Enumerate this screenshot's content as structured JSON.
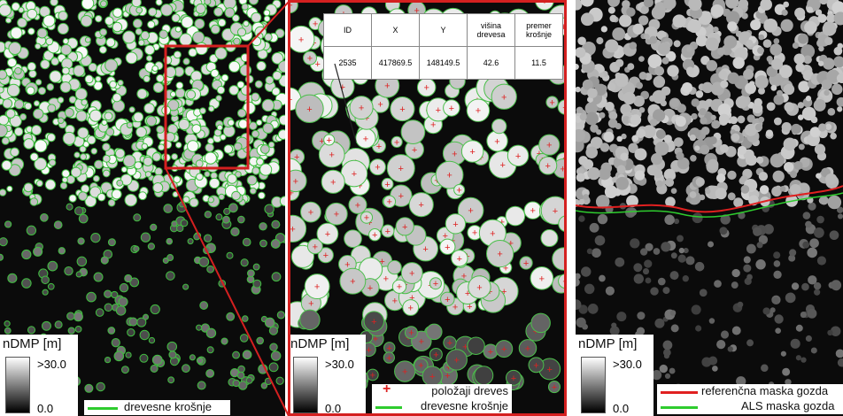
{
  "panels": [
    {
      "legend": {
        "title": "nDMP [m]",
        "max": ">30.0",
        "min": "0.0",
        "items": [
          "drevesne krošnje"
        ]
      }
    },
    {
      "table": {
        "header": [
          "ID",
          "X",
          "Y",
          "višina drevesa",
          "premer krošnje"
        ],
        "rows": [
          [
            "2535",
            "417869.5",
            "148149.5",
            "42.6",
            "11.5"
          ]
        ]
      },
      "legend": {
        "title": "nDMP [m]",
        "max": ">30.0",
        "min": "0.0",
        "items": [
          "položaji dreves",
          "drevesne krošnje"
        ]
      }
    },
    {
      "legend": {
        "title": "nDMP [m]",
        "max": ">30.0",
        "min": "0.0",
        "items": [
          "referenčna maska gozda",
          "ALS maska gozda"
        ]
      }
    }
  ]
}
